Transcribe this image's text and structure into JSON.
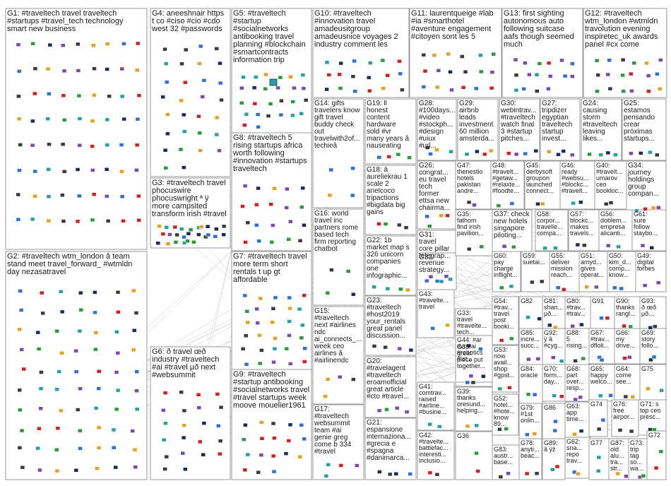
{
  "palette": {
    "border": "#9a9a9a",
    "edge": "#b8b8b8",
    "edge_red": "#e01818",
    "node_dark": "#1a2a5a",
    "node_blue": "#2f6fd8",
    "node_green": "#2a9a3a",
    "node_teal": "#27a0a0",
    "node_orange": "#e8a020",
    "node_purple": "#7a4ab0",
    "node_red": "#d02020"
  },
  "groups": [
    {
      "id": "G1",
      "text": "G1: #traveltech travel traveltech\n#startups #travel_tech technology\nsmart new business"
    },
    {
      "id": "G2",
      "text": "G2: #traveltech wtm_london â team\nstand meet travel_forward_ #wtmldn\nday nezasatravel"
    },
    {
      "id": "G3",
      "text": "G3: #traveltech travel\nphocuswire\nphocuswright ª ÿ\nmore campsited\ntransform irish #travel"
    },
    {
      "id": "G4",
      "text": "G4: aneeshnair https\nt co #ciso #cio #cdo\nwest 32 #passwords"
    },
    {
      "id": "G5",
      "text": "G5: #traveltech\n#startup\n#socialnetworks\nantibooking travel\nplanning #blockchain\n#smartcontracts\ninformation trip"
    },
    {
      "id": "G6",
      "text": "G6: ð travel œð\nindustry #traveltech\n#ai #travel µð next\n#websummit"
    },
    {
      "id": "G7",
      "text": "G7: #traveltech travel\nmore term short\nrentals t up gt\naffordable"
    },
    {
      "id": "G8",
      "text": "G8: #traveltech 5\nrising startups africa\nworth following\n#innovation #startups\ntraveltech"
    },
    {
      "id": "G9",
      "text": "G9: #traveltech\n#startup antibooking\n#socialnetworks travel\n#travel startups week\nmoove mouelier1961"
    },
    {
      "id": "G10",
      "text": "G10: #traveltech\n#innovation travel\namadeusitgroup\namadeusnice voyages 2\nindustry comment les"
    },
    {
      "id": "G11",
      "text": "G11: laurentqueige #lab\n#ia #smarthotel\n#aventure engagement\n#citoyen sont les 5"
    },
    {
      "id": "G12",
      "text": "G12: #traveltech\nwtm_london #wtmldn\ntravolution evening\ninspiretec_uk awards\npanel #cx come"
    },
    {
      "id": "G13",
      "text": "G13: first sighting\nautonomous auto\nfollowing suitcase\naafs though seemed\nmuch"
    },
    {
      "id": "G14",
      "text": "G14: gifts\ntravelers know\ngift travel\nbuddy check\nout\ntravelwith2of...\ntechieâ"
    },
    {
      "id": "G15",
      "text": "G15:\n#traveltech\nnext #airlines\nndc\nai_connects_...\nweek ceo\nairlines â\n#airlinendc"
    },
    {
      "id": "G16",
      "text": "G16: world\ntravel inc\npartners rome\nbased tech\nfirm reporting\nchatbot"
    },
    {
      "id": "G17",
      "text": "G17:\n#traveltech\nwebsummit\nteam #ai\ngenie greg\ncome b 334\n#travel"
    },
    {
      "id": "G18",
      "text": "G18: â\naureliekrau 1\nscale 2\narielcoco\ntripactions\n#bigdata big\ngains"
    },
    {
      "id": "G19",
      "text": "G19: ll\nhonest\ncontent\nhardware\nsold #vr\nmany years â\nnauseating"
    },
    {
      "id": "G20",
      "text": "G20:\n#travelagent\n#traveltech\neroamofficial\ngreat article\n#cto #travel..."
    },
    {
      "id": "G21",
      "text": "G21:\nespansione\ninternaziona...\n#grecia e\n#spagna\n#danimarca..."
    },
    {
      "id": "G22",
      "text": "G22: 1b\nmarket map s\n326 unicorn\ncompanies\none\ninfographic..."
    },
    {
      "id": "G23",
      "text": "G23:\n#traveltech\n#host2019\nyour_rentals\ngreat panel\ndiscussion..."
    },
    {
      "id": "G24",
      "text": "G24:\ncausing\nstorm\n#traveltech\nleaving\nlikes..."
    },
    {
      "id": "G25",
      "text": "G25:\nestamos\npensando\ncrear\npróximas\nstartups..."
    },
    {
      "id": "G26",
      "text": "G26:\ncongrat...\neu travel\ntech\nformer\nettsa new\nchairma..."
    },
    {
      "id": "G27",
      "text": "G27:\ntripdizer\negyptian\ntraveltech\nstartup\ninvest..."
    },
    {
      "id": "G28",
      "text": "G28:\n#100days...\n#video\n#stockph...\n#design\n#uiux #url..."
    },
    {
      "id": "G29",
      "text": "G29:\nairbnb\nleads\ninvestment\n60 million\namsterda..."
    },
    {
      "id": "G30",
      "text": "G30:\nwebintrav...\n#traveltech\nwatch final\n3 #startup\npitches..."
    },
    {
      "id": "G31",
      "text": "G31:\ntravel\ncore pillar\ntelegrap...\nrevenue\nstrategy..."
    },
    {
      "id": "G32",
      "text": "G32"
    },
    {
      "id": "G33",
      "text": "G33:\ntravel\n#travelte...\ntech..."
    },
    {
      "id": "G34",
      "text": "G34:\njourney\nholdings\ngroup\ncompan..."
    },
    {
      "id": "G35",
      "text": "G35:\nfathom\nfind irish\npavilion..."
    },
    {
      "id": "G36",
      "text": "G36"
    },
    {
      "id": "G37",
      "text": "G37: check\nnew hotels\nsingapore\npiloting..."
    },
    {
      "id": "G38",
      "text": "G38:\ngreat\npiece put\ntogether..."
    },
    {
      "id": "G39",
      "text": "G39:\nthanks\noresund...\nhelping..."
    },
    {
      "id": "G40",
      "text": "G40:\n#travelt...\numarov\nceo\nbookloc..."
    },
    {
      "id": "G41",
      "text": "G41:\ncomtrav...\nraised\n#airline...\n#busine..."
    },
    {
      "id": "G42",
      "text": "G42:\n#travelte...\nbattlefac...\ninteresti...\ninclusio..."
    },
    {
      "id": "G43",
      "text": "G43:\n#travelte...\ntravel"
    },
    {
      "id": "G44",
      "text": "G44: #ar\n#vr #ai\n#robotics\n#iot..."
    },
    {
      "id": "G45",
      "text": "G45:\nderbysoft\ngroupon\nlaunched\nconnect..."
    },
    {
      "id": "G46",
      "text": "G46:\nready\n#websu...\n#blockc...\n#travelt..."
    },
    {
      "id": "G47",
      "text": "G47:\nthenestio\nhotels\npakistan\nandre..."
    },
    {
      "id": "G48",
      "text": "G48:\n#travelt...\n#getaw...\n#relaxte...\n#foodte..."
    },
    {
      "id": "G49",
      "text": "G49:\ndigital\nforbes"
    },
    {
      "id": "G50",
      "text": "G50:\nkim_d...\ncomp...\nknow..."
    },
    {
      "id": "G51",
      "text": "G51:\namyd...\ngives\noperat..."
    },
    {
      "id": "G52",
      "text": "G52:\nhotel...\n#hote...\nknow\n89..."
    },
    {
      "id": "G53",
      "text": "G53:\nnow\navail...\nshop\n#gpst..."
    },
    {
      "id": "G54",
      "text": "G54:\n#trav...\ntravel\npost\nbooki..."
    },
    {
      "id": "G55",
      "text": "G55:\ndeliver\nmission\nreach..."
    },
    {
      "id": "G56",
      "text": "G56:\ndoblem...\nempresa\nalicanti..."
    },
    {
      "id": "G57",
      "text": "G57:\nblockc...\nmakes\ntravels..."
    },
    {
      "id": "G58",
      "text": "G58:\ncorpor...\ntravelle...\ncompa..."
    },
    {
      "id": "G59",
      "text": "G59:\nsuetai..."
    },
    {
      "id": "G60",
      "text": "G60:\npay\ncharge\ninflight..."
    },
    {
      "id": "G61",
      "text": "G61:\nsure\nfollow\nstaybo..."
    },
    {
      "id": "G62",
      "text": "G62:\nsna...\nrepo\ntrav..."
    },
    {
      "id": "G63",
      "text": "G63:\napp\ntime..."
    },
    {
      "id": "G64",
      "text": "G64:\ncome\nsee..."
    },
    {
      "id": "G65",
      "text": "G65:\nhappy\nwelco..."
    },
    {
      "id": "G66",
      "text": "G66:\nmy\ndrive..."
    },
    {
      "id": "G67",
      "text": "G67:\n#trav...\ndfloli..."
    },
    {
      "id": "G68",
      "text": "G68:\npart\nover...\nresp..."
    },
    {
      "id": "G69",
      "text": "G69:\nstory\nfollo..."
    },
    {
      "id": "G70",
      "text": "G70:\nform...\nday..."
    },
    {
      "id": "G71",
      "text": "G71: s\ntop ceo\npresc..."
    },
    {
      "id": "G72",
      "text": "G72"
    },
    {
      "id": "G73",
      "text": "G73:\ntrip\ntag\nso...\nwa..."
    },
    {
      "id": "G74",
      "text": "G74"
    },
    {
      "id": "G75",
      "text": "G75"
    },
    {
      "id": "G76",
      "text": "G76:\nfree\nairpor..."
    },
    {
      "id": "G77",
      "text": "G77"
    },
    {
      "id": "G78",
      "text": "G78:\nanyti...\nbeac..."
    },
    {
      "id": "G79",
      "text": "G79:\n#1st\nonlin..."
    },
    {
      "id": "G80",
      "text": "G80:\n#trav...\n#trav..."
    },
    {
      "id": "G81",
      "text": "G81:\nshan...\nµð..."
    },
    {
      "id": "G82",
      "text": "G82"
    },
    {
      "id": "G83",
      "text": "G83:\naustr...\nbase..."
    },
    {
      "id": "G84",
      "text": "G84:\noracle"
    },
    {
      "id": "G85",
      "text": "G85:\nincre...\nsucc..."
    },
    {
      "id": "G86",
      "text": "G86"
    },
    {
      "id": "G87",
      "text": "G87:\nold\nalu...\ntra...\nstr..."
    },
    {
      "id": "G88",
      "text": "G88:\n5\nrising..."
    },
    {
      "id": "G89",
      "text": "G89:\nâ ÿž"
    },
    {
      "id": "G90",
      "text": "G90:\nthanks\nrangl..."
    },
    {
      "id": "G91",
      "text": "G91"
    },
    {
      "id": "G92",
      "text": "G92:\nÿ â\n#cyg..."
    },
    {
      "id": "G93",
      "text": "G93:\nð œð\nµð..."
    }
  ]
}
